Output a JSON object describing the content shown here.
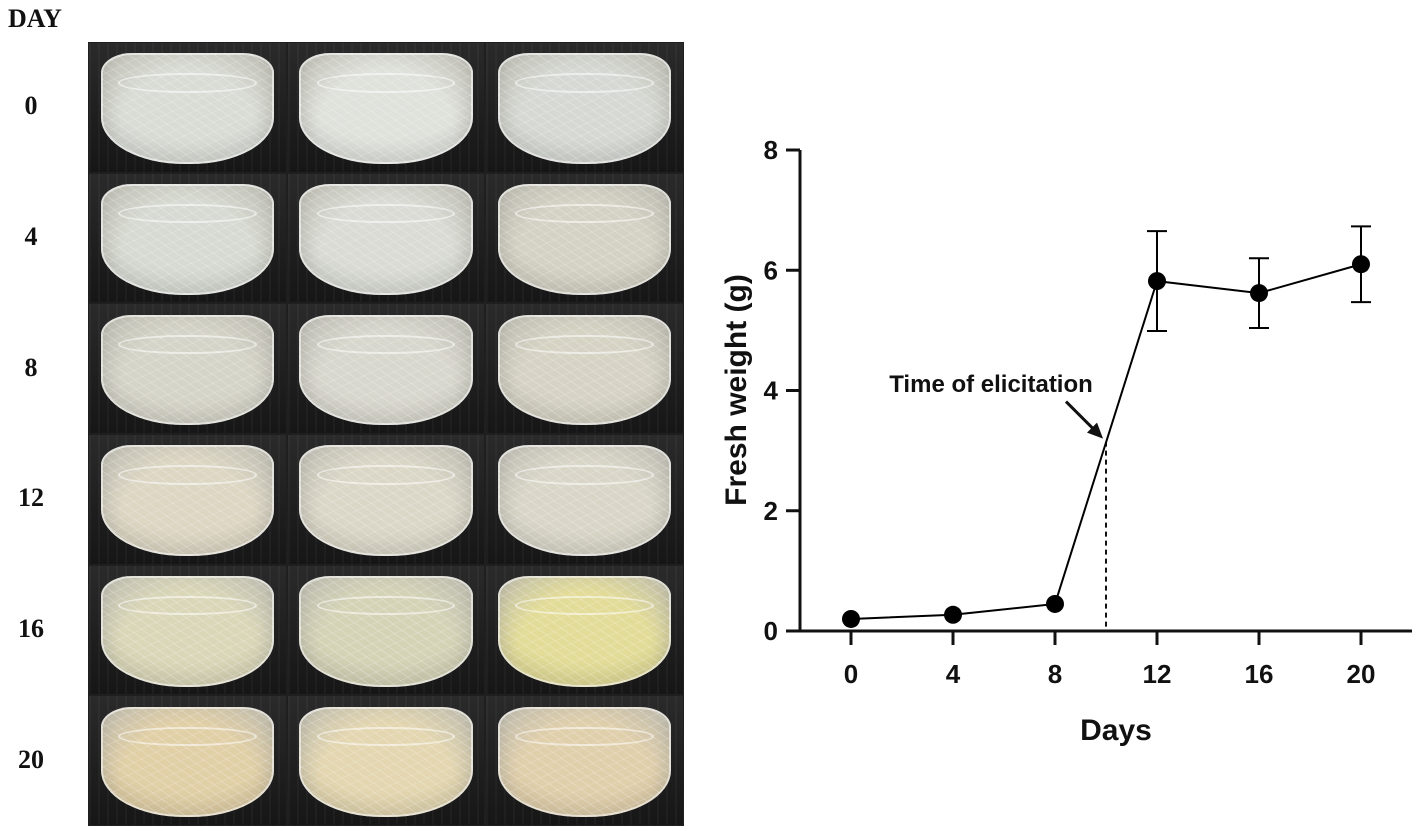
{
  "photo_panel": {
    "header": "DAY",
    "rows": [
      "0",
      "4",
      "8",
      "12",
      "16",
      "20"
    ],
    "flask_colors": [
      [
        "#d9dcd5",
        "#dfe1db",
        "#d6d9d3"
      ],
      [
        "#d7dad2",
        "#d9dbd4",
        "#d4d2c4"
      ],
      [
        "#d5d4c8",
        "#d8d7cd",
        "#d6d3c4"
      ],
      [
        "#dcd6c3",
        "#dbd7c7",
        "#d9d6c8"
      ],
      [
        "#dad7b8",
        "#d5d3b6",
        "#e3dc98"
      ],
      [
        "#e1cfa6",
        "#e3d6b0",
        "#e0cfab"
      ]
    ]
  },
  "chart_data": {
    "type": "line",
    "title": "",
    "xlabel": "Days",
    "ylabel": "Fresh weight (g)",
    "xlim": [
      -2,
      22
    ],
    "ylim": [
      0,
      8
    ],
    "xticks": [
      0,
      4,
      8,
      12,
      16,
      20
    ],
    "yticks": [
      0,
      2,
      4,
      6,
      8
    ],
    "series": [
      {
        "x": [
          0,
          4,
          8,
          12,
          16,
          20
        ],
        "y": [
          0.2,
          0.27,
          0.45,
          5.82,
          5.62,
          6.1
        ],
        "error": [
          0,
          0,
          0,
          0.83,
          0.58,
          0.63
        ],
        "color": "#000000",
        "marker": "circle"
      }
    ],
    "annotation": {
      "text": "Time of elicitation",
      "x": 10,
      "y": 3.15
    }
  }
}
